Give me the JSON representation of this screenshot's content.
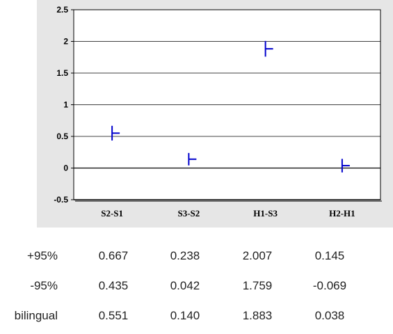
{
  "chart_data": {
    "type": "scatter",
    "categories": [
      "S2-S1",
      "S3-S2",
      "H1-S3",
      "H2-H1"
    ],
    "y_ticks": [
      "2.5",
      "2",
      "1.5",
      "1",
      "0.5",
      "0",
      "-0.5"
    ],
    "ylim": [
      -0.5,
      2.5
    ],
    "grid": true,
    "series": [
      {
        "values": [
          0.551,
          0.14,
          1.883,
          0.038
        ]
      }
    ],
    "upper": [
      0.667,
      0.238,
      2.007,
      0.145
    ],
    "lower": [
      0.435,
      0.042,
      1.759,
      -0.069
    ],
    "marker_color": "#0000cc"
  },
  "table": {
    "rows": [
      {
        "label": "+95%",
        "values": [
          "0.667",
          "0.238",
          "2.007",
          "0.145"
        ]
      },
      {
        "label": "-95%",
        "values": [
          "0.435",
          "0.042",
          "1.759",
          "-0.069"
        ]
      },
      {
        "label": "bilingual",
        "values": [
          "0.551",
          "0.140",
          "1.883",
          "0.038"
        ]
      }
    ]
  }
}
